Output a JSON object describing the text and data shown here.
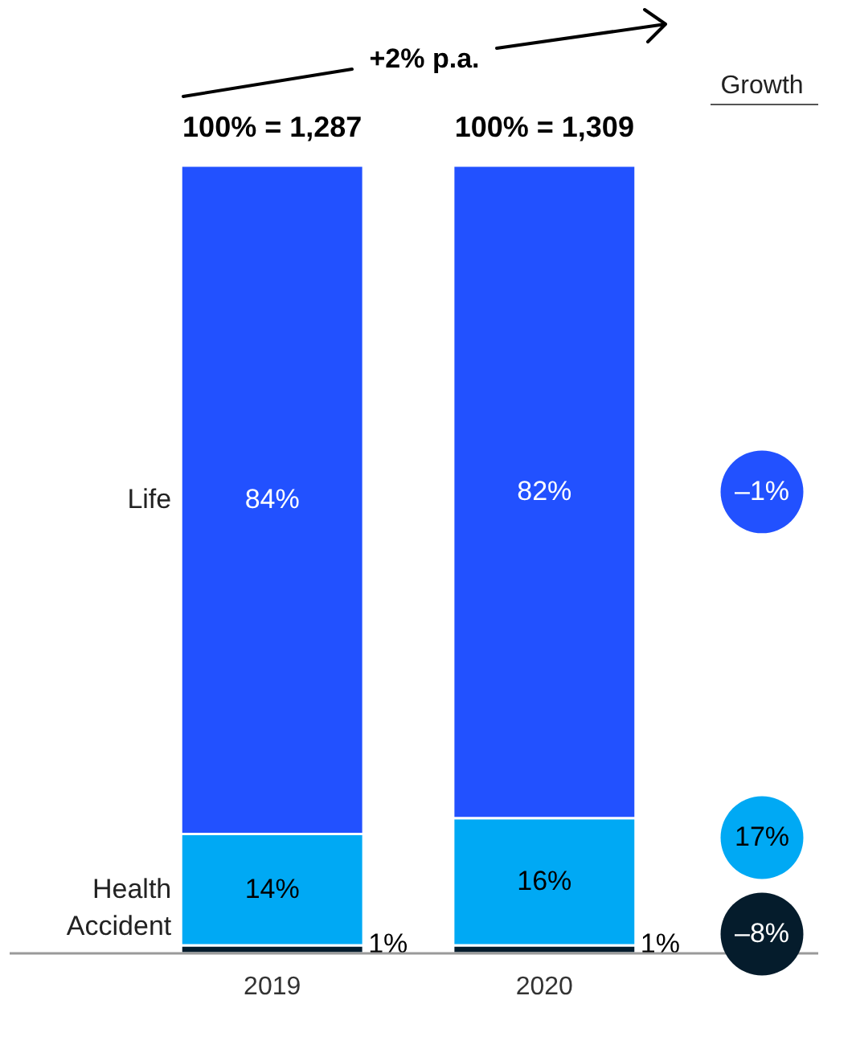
{
  "chart_data": {
    "type": "bar",
    "stacked": true,
    "legend": false,
    "categories": [
      "2019",
      "2020"
    ],
    "series": [
      {
        "name": "Accident",
        "color": "#051c2c",
        "values": [
          1,
          1
        ],
        "value_labels": [
          "1%",
          "1%"
        ]
      },
      {
        "name": "Health",
        "color": "#00a9f4",
        "values": [
          14,
          16
        ],
        "value_labels": [
          "14%",
          "16%"
        ]
      },
      {
        "name": "Life",
        "color": "#2251ff",
        "values": [
          84,
          82
        ],
        "value_labels": [
          "84%",
          "82%"
        ]
      }
    ],
    "totals": [
      "100% = 1,287",
      "100% = 1,309"
    ],
    "annotations": [
      "+2% p.a.",
      "Growth",
      "–8%",
      "17%",
      "–1%"
    ]
  }
}
